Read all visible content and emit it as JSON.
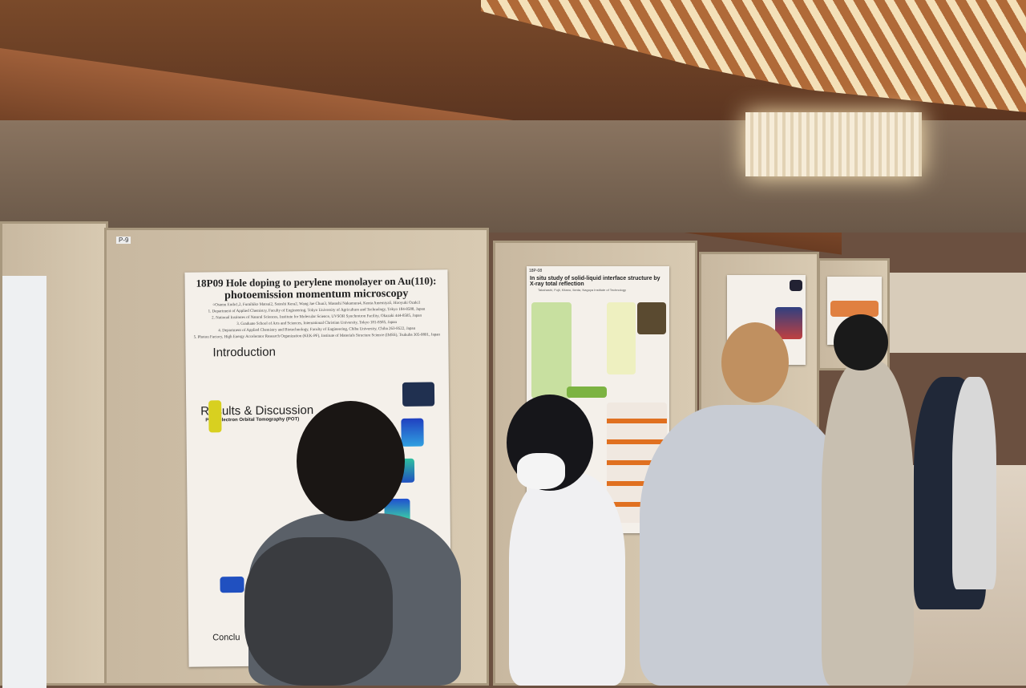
{
  "panel_labels": {
    "left": "P-9"
  },
  "poster_1": {
    "title_line1": "18P09  Hole doping to perylene monolayer on Au(110):",
    "title_line2": "photoemission momentum microscopy",
    "authors": "○Osamu Endo1,2, Fumihiko Matsui2, Satoshi Kera2, Wang Jae Chun3, Masashi Nakamura4, Kenta Amemiya5, Hiroyuki Ozaki1",
    "affiliations": [
      "1. Department of Applied Chemistry, Faculty of Engineering, Tokyo University of Agriculture and Technology, Tokyo 184-8588, Japan",
      "2. National Institutes of Natural Sciences, Institute for Molecular Science, UVSOR Synchrotron Facility, Okazaki 444-8585, Japan",
      "3. Graduate School of Arts and Sciences, International Christian University, Tokyo 181-8585, Japan",
      "4. Department of Applied Chemistry and Biotechnology, Faculty of Engineering, Chiba University, Chiba 263-8522, Japan",
      "5. Photon Factory, High Energy Accelerator Research Organization (KEK-PF), Institute of Materials Structure Science (IMSS), Tsukuba 305-0801, Japan"
    ],
    "section_intro": "Introduction",
    "section_results": "Results & Discussion",
    "section_results_sub": "Photoelectron Orbital Tomography (POT)",
    "section_conclusion": "Conclu"
  },
  "poster_2": {
    "id": "18P-08",
    "title": "In situ study of solid-liquid interface structure by X-ray total reflection",
    "authors": "Takahashi, Fujii, Kitano, Ikeda, Nagoya Institute of Technology"
  },
  "colors": {
    "wood": "#a0603a",
    "panel": "#cdbfa6",
    "poster": "#f4f0ea",
    "accent_green": "#7cb342",
    "accent_orange": "#e07020"
  }
}
